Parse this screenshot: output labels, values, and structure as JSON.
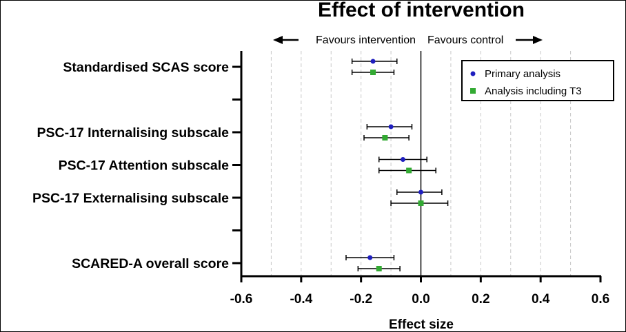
{
  "chart_data": {
    "type": "forest",
    "title": "Effect of intervention",
    "xlabel": "Effect size",
    "xlim": [
      -0.6,
      0.6
    ],
    "xticks": [
      -0.6,
      -0.4,
      -0.2,
      0.0,
      0.2,
      0.4,
      0.6
    ],
    "xtick_labels": [
      "-0.6",
      "-0.4",
      "-0.2",
      "0.0",
      "0.2",
      "0.4",
      "0.6"
    ],
    "gridlines": [
      -0.5,
      -0.4,
      -0.3,
      -0.2,
      -0.1,
      0.1,
      0.2,
      0.3,
      0.4,
      0.5
    ],
    "reference_line": 0.0,
    "favours_left": "Favours intervention",
    "favours_right": "Favours control",
    "categories": [
      "Standardised SCAS score",
      "PSC-17 Internalising subscale",
      "PSC-17 Attention subscale",
      "PSC-17 Externalising subscale",
      "SCARED-A overall score"
    ],
    "category_slots": [
      0,
      2,
      3,
      4,
      6
    ],
    "slot_count": 7,
    "series": [
      {
        "name": "Primary analysis",
        "color": "#1f1fbf",
        "marker": "circle",
        "estimates": [
          -0.16,
          -0.1,
          -0.06,
          0.0,
          -0.17
        ],
        "ci_low": [
          -0.23,
          -0.18,
          -0.14,
          -0.08,
          -0.25
        ],
        "ci_high": [
          -0.08,
          -0.03,
          0.02,
          0.07,
          -0.09
        ]
      },
      {
        "name": "Analysis including T3",
        "color": "#33aa33",
        "marker": "square",
        "estimates": [
          -0.16,
          -0.12,
          -0.04,
          0.0,
          -0.14
        ],
        "ci_low": [
          -0.23,
          -0.19,
          -0.14,
          -0.1,
          -0.21
        ],
        "ci_high": [
          -0.09,
          -0.04,
          0.05,
          0.09,
          -0.07
        ]
      }
    ],
    "legend_position": "top-right"
  }
}
